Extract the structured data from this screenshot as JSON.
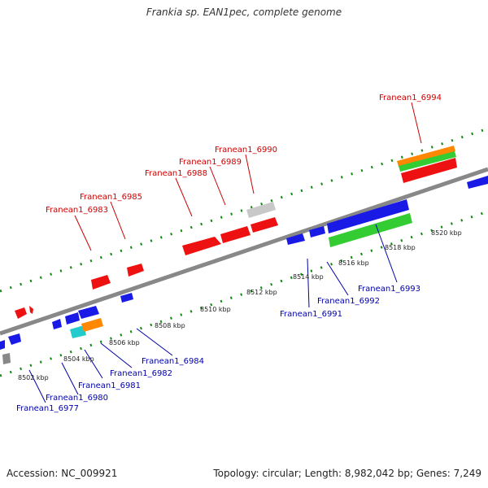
{
  "title": "Frankia sp. EAN1pec, complete genome",
  "footer": {
    "accession": "Accession: NC_009921",
    "summary": "Topology: circular; Length: 8,982,042 bp; Genes: 7,249"
  },
  "colors": {
    "forward_gene": "#ee1111",
    "reverse_gene": "#1a1ae6",
    "forward_label": "#cc0000",
    "reverse_label": "#0000aa",
    "backbone": "#888888",
    "tick": "#118811",
    "pseudo": "#c8c8c8",
    "rna": "#888888",
    "orange": "#ff8800",
    "green": "#33cc33",
    "cyan": "#22cccc"
  },
  "ticks": [
    "8502 kbp",
    "8504 kbp",
    "8506 kbp",
    "8508 kbp",
    "8510 kbp",
    "8512 kbp",
    "8514 kbp",
    "8516 kbp",
    "8518 kbp",
    "8520 kbp"
  ],
  "forward_labels": [
    "Franean1_6983",
    "Franean1_6985",
    "Franean1_6988",
    "Franean1_6989",
    "Franean1_6990",
    "Franean1_6994"
  ],
  "reverse_labels": [
    "Franean1_6977",
    "Franean1_6980",
    "Franean1_6981",
    "Franean1_6982",
    "Franean1_6984",
    "Franean1_6991",
    "Franean1_6992",
    "Franean1_6993"
  ]
}
